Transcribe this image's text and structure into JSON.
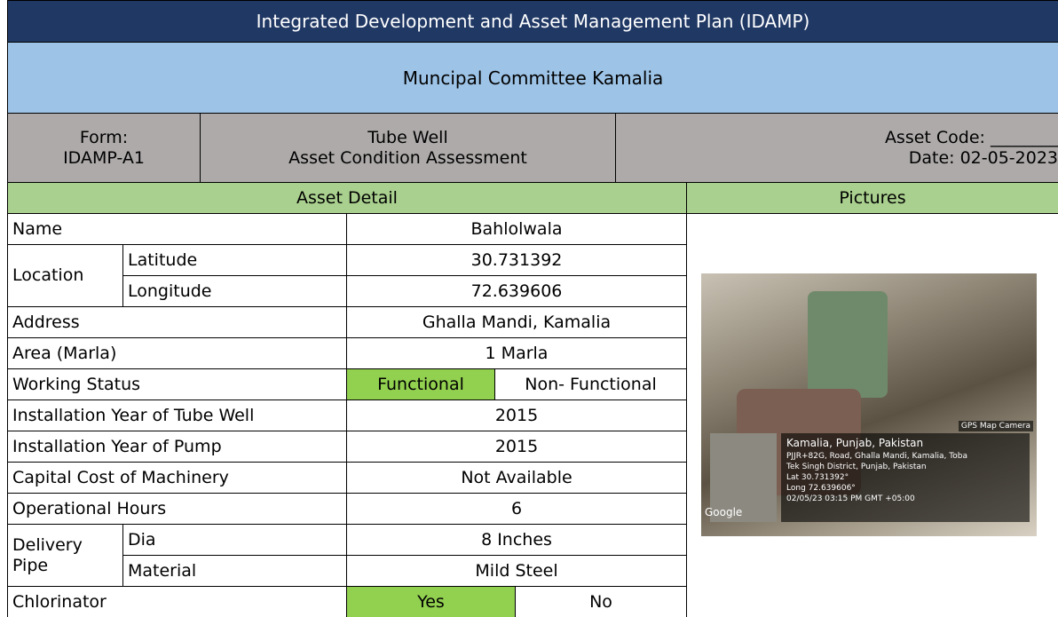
{
  "header": {
    "title": "Integrated Development and Asset Management Plan (IDAMP)",
    "subtitle": "Muncipal Committee Kamalia",
    "form_label": "Form:",
    "form_code": "IDAMP-A1",
    "form_title_1": "Tube Well",
    "form_title_2": "Asset Condition Assessment",
    "asset_code": "Asset Code: ________",
    "date": "Date: 02-05-2023"
  },
  "sections": {
    "asset_detail": "Asset Detail",
    "pictures": "Pictures"
  },
  "table": {
    "rows": [
      [
        "Name",
        "Bahlolwala"
      ],
      [
        "Location",
        "Latitude",
        "30.731392"
      ],
      [
        "Longitude",
        "72.639606"
      ],
      [
        "Address",
        "Ghalla Mandi, Kamalia"
      ],
      [
        "Area (Marla)",
        "1 Marla"
      ],
      [
        "Working Status",
        "Functional",
        "Non- Functional"
      ],
      [
        "Installation Year of Tube Well",
        "2015"
      ],
      [
        "Installation Year of Pump",
        "2015"
      ],
      [
        "Capital Cost of Machinery",
        "Not Available"
      ],
      [
        "Operational Hours",
        "6"
      ],
      [
        "Delivery Pipe",
        "Dia",
        "8 Inches"
      ],
      [
        "Material",
        "Mild Steel"
      ],
      [
        "Chlorinator",
        "Yes",
        "No"
      ]
    ]
  },
  "picture": {
    "app": "GPS Map Camera",
    "place": "Kamalia, Punjab, Pakistan",
    "address_1": "PJJR+82G, Road, Ghalla Mandi, Kamalia, Toba",
    "address_2": "Tek Singh District, Punjab, Pakistan",
    "lat": "Lat 30.731392°",
    "long": "Long 72.639606°",
    "time": "02/05/23 03:15 PM GMT +05:00",
    "map": "Google"
  }
}
